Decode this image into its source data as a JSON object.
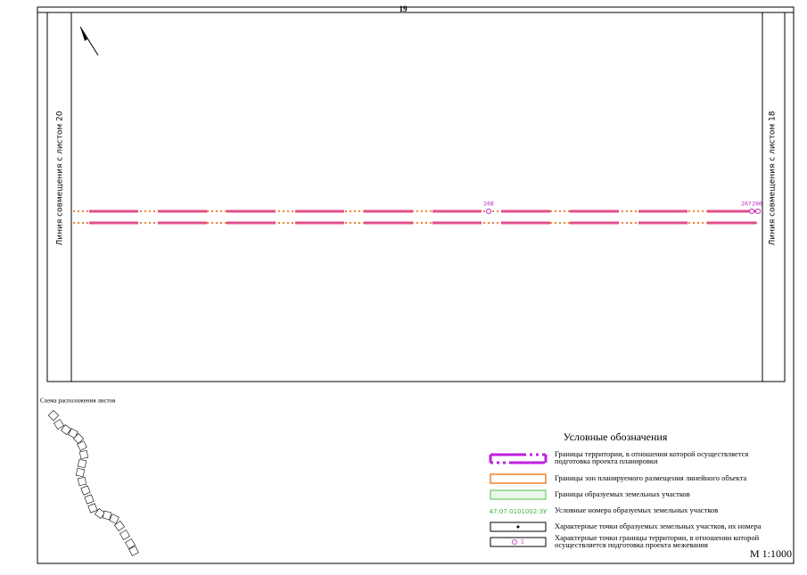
{
  "header": {
    "sheet": "19"
  },
  "map": {
    "left_label": "Линия совмещения с листом 20",
    "right_label": "Линия совмещения с листом 18",
    "points": [
      "268",
      "267",
      "266"
    ]
  },
  "scheme": {
    "title": "Схема расположения листов"
  },
  "legend": {
    "title": "Условные обозначения",
    "items": [
      {
        "text": [
          "Границы территории, в отношении которой осуществляется",
          "подготовка проекта планировки"
        ]
      },
      {
        "text": [
          "Границы зон планируемого размещения линейного объекта"
        ]
      },
      {
        "text": [
          "Границы образуемых земельных участков"
        ]
      },
      {
        "sample": "47:07:0101002:ЗУ",
        "text": [
          "Условные номера образуемых земельных участков"
        ]
      },
      {
        "text": [
          "Характерные точки образуемых земельных участков, их номера"
        ]
      },
      {
        "sample": "1",
        "text": [
          "Характерные точки границы территории, в отношении которой",
          "осуществляется подготовка проекта межевания"
        ]
      }
    ]
  },
  "scale": "М 1:1000"
}
